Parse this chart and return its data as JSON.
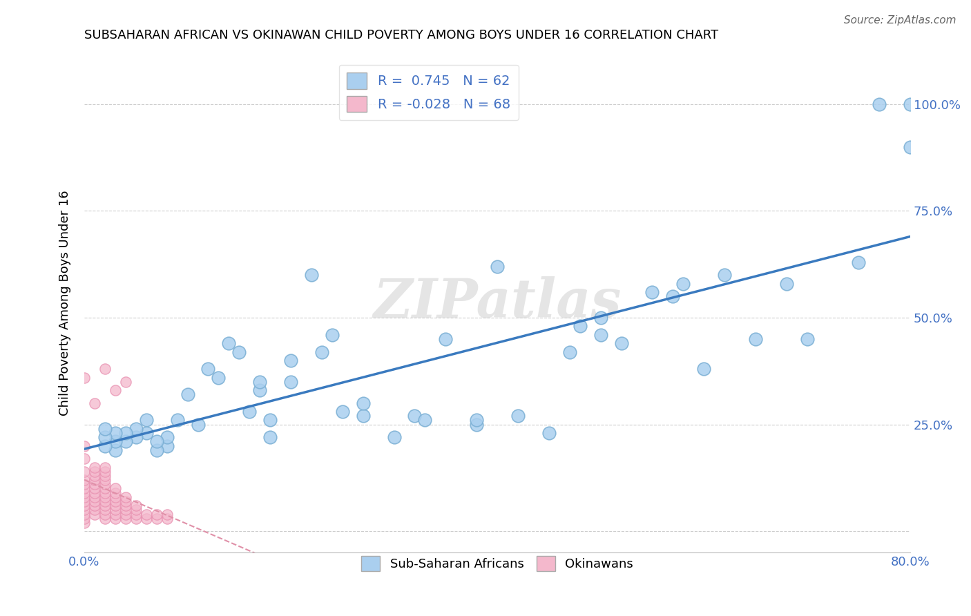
{
  "title": "SUBSAHARAN AFRICAN VS OKINAWAN CHILD POVERTY AMONG BOYS UNDER 16 CORRELATION CHART",
  "source": "Source: ZipAtlas.com",
  "ylabel": "Child Poverty Among Boys Under 16",
  "xlim": [
    0.0,
    0.8
  ],
  "ylim": [
    -0.05,
    1.12
  ],
  "ytick_vals": [
    0.0,
    0.25,
    0.5,
    0.75,
    1.0
  ],
  "ytick_labels": [
    "",
    "25.0%",
    "50.0%",
    "75.0%",
    "100.0%"
  ],
  "blue_r": 0.745,
  "blue_n": 62,
  "pink_r": -0.028,
  "pink_n": 68,
  "blue_color": "#aacfef",
  "pink_color": "#f4b8cc",
  "blue_edge_color": "#7aafd4",
  "pink_edge_color": "#e890b0",
  "blue_line_color": "#3a7abf",
  "pink_line_color": "#e090a8",
  "grid_color": "#cccccc",
  "watermark": "ZIPatlas",
  "blue_scatter_x": [
    0.38,
    0.38,
    0.42,
    0.2,
    0.2,
    0.23,
    0.24,
    0.25,
    0.17,
    0.17,
    0.18,
    0.18,
    0.15,
    0.16,
    0.12,
    0.13,
    0.14,
    0.1,
    0.11,
    0.09,
    0.08,
    0.08,
    0.07,
    0.07,
    0.06,
    0.06,
    0.05,
    0.05,
    0.04,
    0.04,
    0.03,
    0.03,
    0.03,
    0.02,
    0.02,
    0.02,
    0.27,
    0.27,
    0.3,
    0.32,
    0.33,
    0.35,
    0.45,
    0.47,
    0.5,
    0.52,
    0.55,
    0.58,
    0.6,
    0.62,
    0.65,
    0.68,
    0.7,
    0.75,
    0.77,
    0.8,
    0.8,
    0.48,
    0.5,
    0.22,
    0.4,
    0.57
  ],
  "blue_scatter_y": [
    0.25,
    0.26,
    0.27,
    0.35,
    0.4,
    0.42,
    0.46,
    0.28,
    0.33,
    0.35,
    0.26,
    0.22,
    0.42,
    0.28,
    0.38,
    0.36,
    0.44,
    0.32,
    0.25,
    0.26,
    0.2,
    0.22,
    0.19,
    0.21,
    0.23,
    0.26,
    0.22,
    0.24,
    0.21,
    0.23,
    0.19,
    0.21,
    0.23,
    0.2,
    0.22,
    0.24,
    0.27,
    0.3,
    0.22,
    0.27,
    0.26,
    0.45,
    0.23,
    0.42,
    0.46,
    0.44,
    0.56,
    0.58,
    0.38,
    0.6,
    0.45,
    0.58,
    0.45,
    0.63,
    1.0,
    1.0,
    0.9,
    0.48,
    0.5,
    0.6,
    0.62,
    0.55
  ],
  "pink_scatter_x": [
    0.0,
    0.0,
    0.0,
    0.0,
    0.0,
    0.0,
    0.0,
    0.0,
    0.0,
    0.0,
    0.0,
    0.0,
    0.0,
    0.0,
    0.0,
    0.01,
    0.01,
    0.01,
    0.01,
    0.01,
    0.01,
    0.01,
    0.01,
    0.01,
    0.01,
    0.01,
    0.01,
    0.02,
    0.02,
    0.02,
    0.02,
    0.02,
    0.02,
    0.02,
    0.02,
    0.02,
    0.02,
    0.02,
    0.02,
    0.02,
    0.03,
    0.03,
    0.03,
    0.03,
    0.03,
    0.03,
    0.03,
    0.03,
    0.04,
    0.04,
    0.04,
    0.04,
    0.04,
    0.04,
    0.05,
    0.05,
    0.05,
    0.05,
    0.06,
    0.06,
    0.07,
    0.07,
    0.08,
    0.08,
    0.02,
    0.04,
    0.03,
    0.01
  ],
  "pink_scatter_y": [
    0.02,
    0.03,
    0.04,
    0.05,
    0.06,
    0.07,
    0.08,
    0.09,
    0.1,
    0.11,
    0.12,
    0.14,
    0.17,
    0.2,
    0.36,
    0.04,
    0.05,
    0.06,
    0.07,
    0.08,
    0.09,
    0.1,
    0.11,
    0.12,
    0.13,
    0.14,
    0.15,
    0.03,
    0.04,
    0.05,
    0.06,
    0.07,
    0.08,
    0.09,
    0.1,
    0.11,
    0.12,
    0.13,
    0.14,
    0.15,
    0.03,
    0.04,
    0.05,
    0.06,
    0.07,
    0.08,
    0.09,
    0.1,
    0.03,
    0.04,
    0.05,
    0.06,
    0.07,
    0.08,
    0.03,
    0.04,
    0.05,
    0.06,
    0.03,
    0.04,
    0.03,
    0.04,
    0.03,
    0.04,
    0.38,
    0.35,
    0.33,
    0.3
  ]
}
